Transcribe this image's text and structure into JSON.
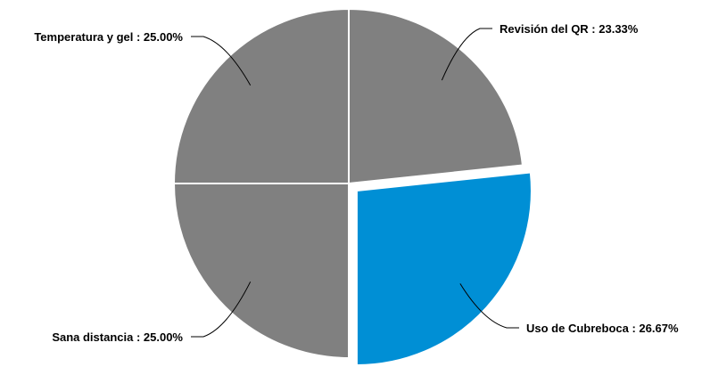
{
  "chart_data": {
    "type": "pie",
    "title": "",
    "slices": [
      {
        "label": "Revisión del QR",
        "value": 23.33,
        "text": "Revisión del QR : 23.33%",
        "color": "#808080",
        "exploded": false
      },
      {
        "label": "Uso de Cubreboca",
        "value": 26.67,
        "text": "Uso de Cubreboca : 26.67%",
        "color": "#008fd5",
        "exploded": true
      },
      {
        "label": "Sana distancia",
        "value": 25.0,
        "text": "Sana distancia : 25.00%",
        "color": "#808080",
        "exploded": false
      },
      {
        "label": "Temperatura y gel",
        "value": 25.0,
        "text": "Temperatura y gel : 25.00%",
        "color": "#808080",
        "exploded": false
      }
    ],
    "start_angle": "12 o'clock",
    "direction": "clockwise",
    "legend": "none",
    "data_labels": "outside with leader lines"
  }
}
